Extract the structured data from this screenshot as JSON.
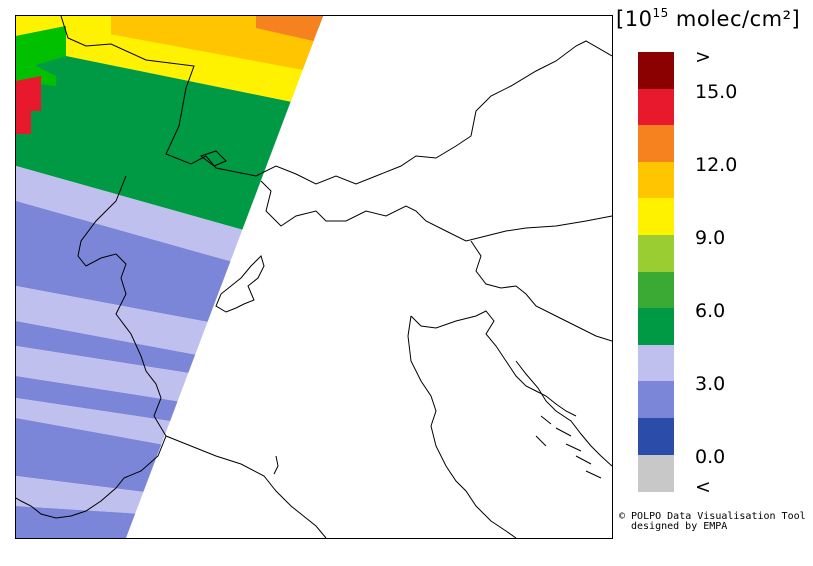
{
  "legend": {
    "unit_bracket_open": "[",
    "unit_prefix": "10",
    "unit_exponent": "15",
    "unit_suffix": " molec/cm²",
    "unit_bracket_close": "]",
    "colors": [
      "#8b0000",
      "#e8192c",
      "#f5821f",
      "#ffc600",
      "#fff200",
      "#9acd32",
      "#3aaa35",
      "#009a44",
      "#c0c0ef",
      "#7b86d8",
      "#2b4ca8",
      "#c8c8c8"
    ],
    "labels": {
      "top": ">",
      "l15": "15.0",
      "l12": "12.0",
      "l9": "9.0",
      "l6": "6.0",
      "l3": "3.0",
      "l0": "0.0",
      "bottom": "<"
    }
  },
  "credit": {
    "line1": "© POLPO Data Visualisation Tool",
    "line2": "designed by EMPA"
  }
}
